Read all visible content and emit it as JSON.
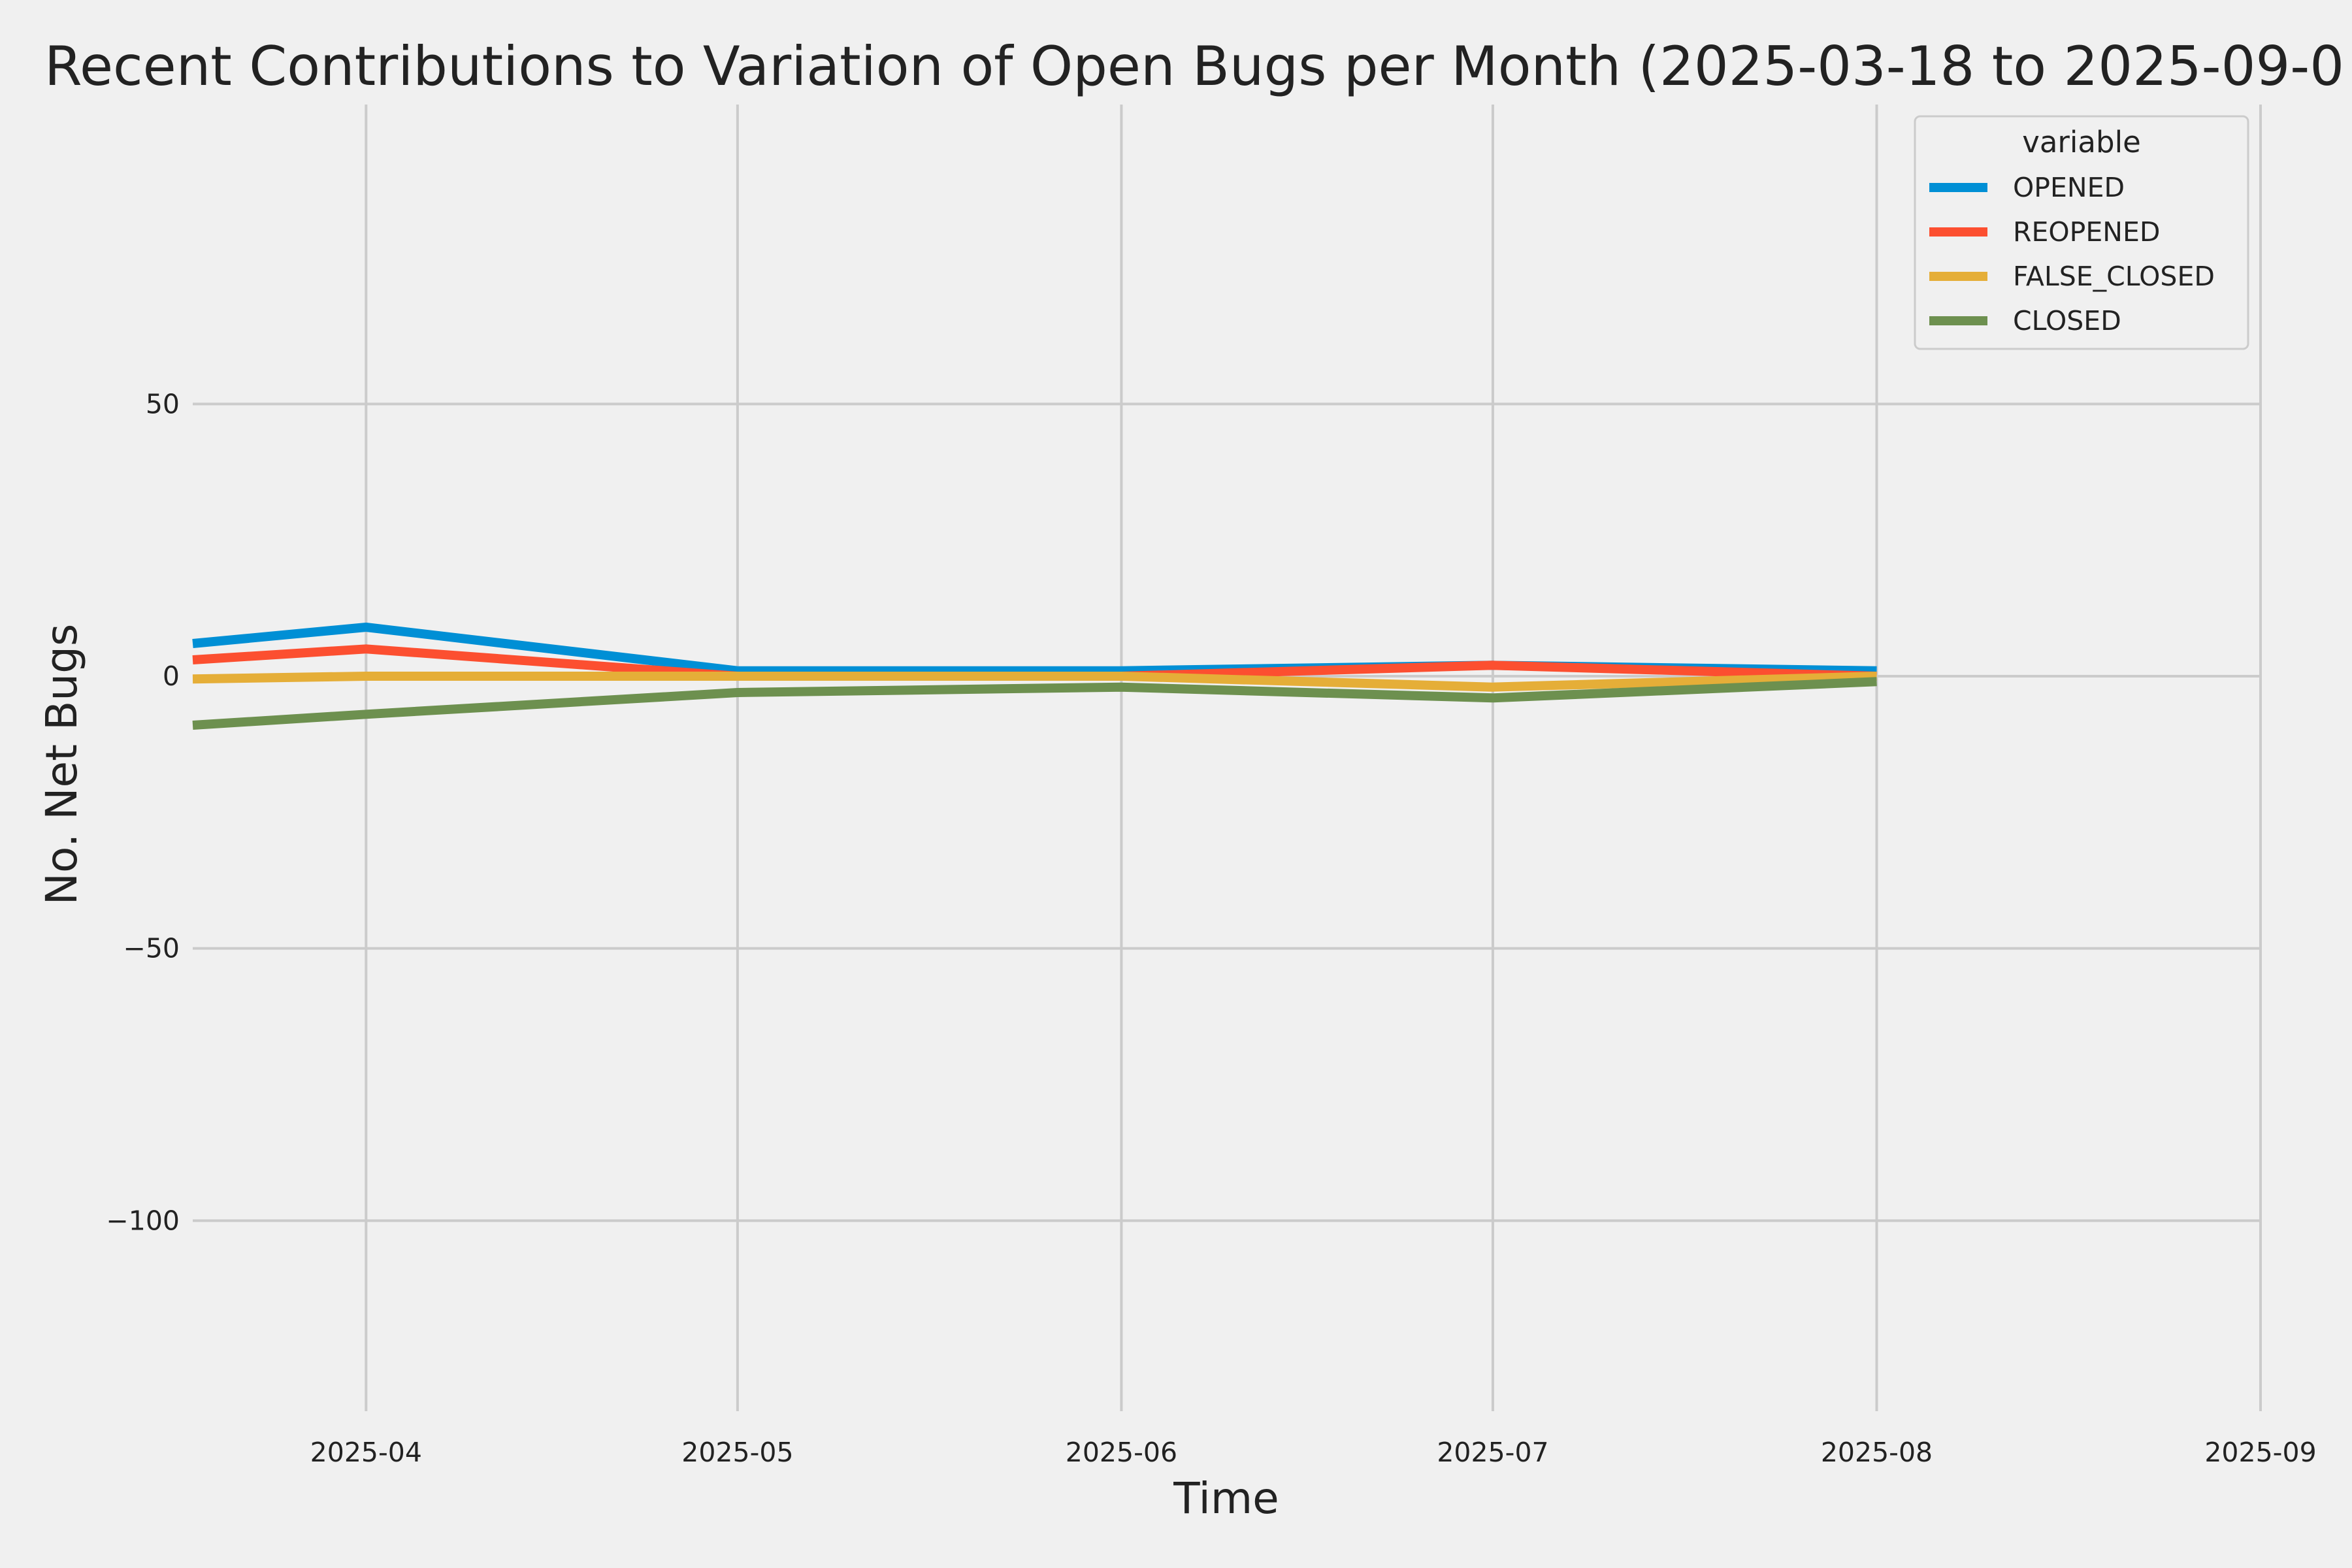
{
  "chart_data": {
    "type": "line",
    "title": "Recent Contributions to Variation of Open Bugs per Month (2025-03-18 to 2025-09-0",
    "xlabel": "Time",
    "ylabel": "No. Net Bugs",
    "x": [
      "2025-03-18",
      "2025-04-01",
      "2025-05-01",
      "2025-06-01",
      "2025-07-01",
      "2025-08-01"
    ],
    "xlim": [
      "2025-03-18",
      "2025-09-01"
    ],
    "ylim": [
      -135,
      105
    ],
    "x_ticks": [
      {
        "date": "2025-04-01",
        "label": "2025-04"
      },
      {
        "date": "2025-05-01",
        "label": "2025-05"
      },
      {
        "date": "2025-06-01",
        "label": "2025-06"
      },
      {
        "date": "2025-07-01",
        "label": "2025-07"
      },
      {
        "date": "2025-08-01",
        "label": "2025-08"
      },
      {
        "date": "2025-09-01",
        "label": "2025-09"
      }
    ],
    "y_ticks": [
      {
        "value": 50,
        "label": "50"
      },
      {
        "value": 0,
        "label": "0"
      },
      {
        "value": -50,
        "label": "−50"
      },
      {
        "value": -100,
        "label": "−100"
      }
    ],
    "grid": true,
    "legend": {
      "title": "variable",
      "position": "top-right"
    },
    "series": [
      {
        "name": "OPENED",
        "color": "#008fd5",
        "values": [
          6,
          9,
          1,
          1,
          2,
          1
        ]
      },
      {
        "name": "REOPENED",
        "color": "#fc4f30",
        "values": [
          3,
          5,
          0,
          0,
          2,
          0
        ]
      },
      {
        "name": "FALSE_CLOSED",
        "color": "#e5ae38",
        "values": [
          -0.5,
          0,
          0,
          0,
          -2,
          0
        ]
      },
      {
        "name": "CLOSED",
        "color": "#6d904f",
        "values": [
          -9,
          -7,
          -3,
          -2,
          -4,
          -1
        ]
      }
    ]
  }
}
